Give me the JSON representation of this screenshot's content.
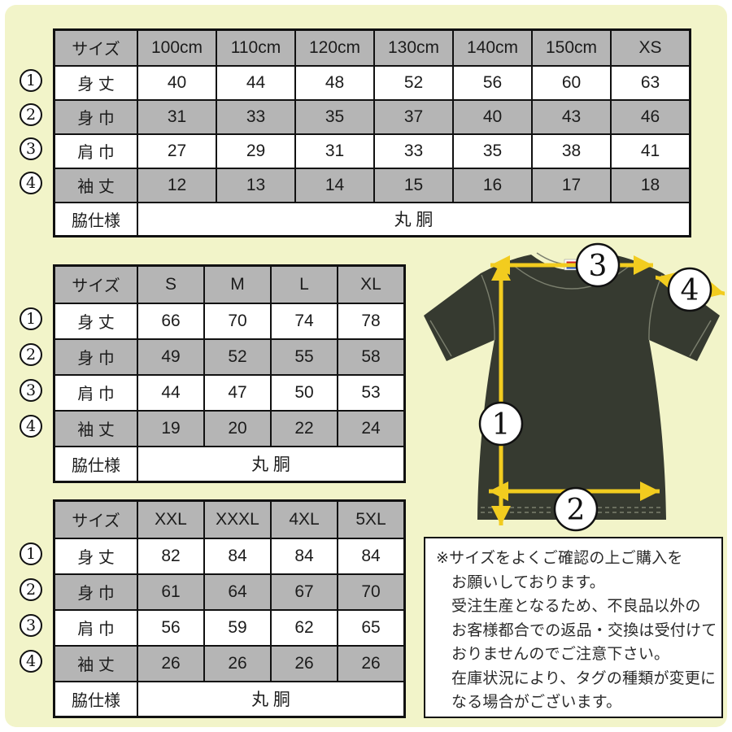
{
  "colors": {
    "background": "#f2f4c9",
    "frame": "#ffffff",
    "table_gray": "#b5b5b5",
    "table_border": "#111111",
    "accent_yellow": "#f2cc1f",
    "shirt": "#363a30",
    "shirt_seam": "#7b7f6e",
    "tag_red": "#cc2020",
    "tag_blue": "#1a47b8"
  },
  "tables": [
    {
      "name": "kids-xs",
      "header": [
        "サイズ",
        "100cm",
        "110cm",
        "120cm",
        "130cm",
        "140cm",
        "150cm",
        "XS"
      ],
      "rows": [
        {
          "circle": "1",
          "label": "身 丈",
          "values": [
            "40",
            "44",
            "48",
            "52",
            "56",
            "60",
            "63"
          ]
        },
        {
          "circle": "2",
          "label": "身 巾",
          "values": [
            "31",
            "33",
            "35",
            "37",
            "40",
            "43",
            "46"
          ]
        },
        {
          "circle": "3",
          "label": "肩 巾",
          "values": [
            "27",
            "29",
            "31",
            "33",
            "35",
            "38",
            "41"
          ]
        },
        {
          "circle": "4",
          "label": "袖 丈",
          "values": [
            "12",
            "13",
            "14",
            "15",
            "16",
            "17",
            "18"
          ]
        }
      ],
      "footer": {
        "label": "脇仕様",
        "value": "丸 胴"
      }
    },
    {
      "name": "s-xl",
      "header": [
        "サイズ",
        "S",
        "M",
        "L",
        "XL"
      ],
      "rows": [
        {
          "circle": "1",
          "label": "身 丈",
          "values": [
            "66",
            "70",
            "74",
            "78"
          ]
        },
        {
          "circle": "2",
          "label": "身 巾",
          "values": [
            "49",
            "52",
            "55",
            "58"
          ]
        },
        {
          "circle": "3",
          "label": "肩 巾",
          "values": [
            "44",
            "47",
            "50",
            "53"
          ]
        },
        {
          "circle": "4",
          "label": "袖 丈",
          "values": [
            "19",
            "20",
            "22",
            "24"
          ]
        }
      ],
      "footer": {
        "label": "脇仕様",
        "value": "丸 胴"
      }
    },
    {
      "name": "xxl-5xl",
      "header": [
        "サイズ",
        "XXL",
        "XXXL",
        "4XL",
        "5XL"
      ],
      "rows": [
        {
          "circle": "1",
          "label": "身 丈",
          "values": [
            "82",
            "84",
            "84",
            "84"
          ]
        },
        {
          "circle": "2",
          "label": "身 巾",
          "values": [
            "61",
            "64",
            "67",
            "70"
          ]
        },
        {
          "circle": "3",
          "label": "肩 巾",
          "values": [
            "56",
            "59",
            "62",
            "65"
          ]
        },
        {
          "circle": "4",
          "label": "袖 丈",
          "values": [
            "26",
            "26",
            "26",
            "26"
          ]
        }
      ],
      "footer": {
        "label": "脇仕様",
        "value": "丸 胴"
      }
    }
  ],
  "diagram": {
    "labels": [
      "1",
      "2",
      "3",
      "4"
    ]
  },
  "note": {
    "lines": [
      "※サイズをよくご確認の上ご購入を",
      "お願いしております。",
      "受注生産となるため、不良品以外の",
      "お客様都合での返品・交換は受付けて",
      "おりませんのでご注意下さい。",
      "在庫状況により、タグの種類が変更に",
      "なる場合がございます。"
    ]
  }
}
